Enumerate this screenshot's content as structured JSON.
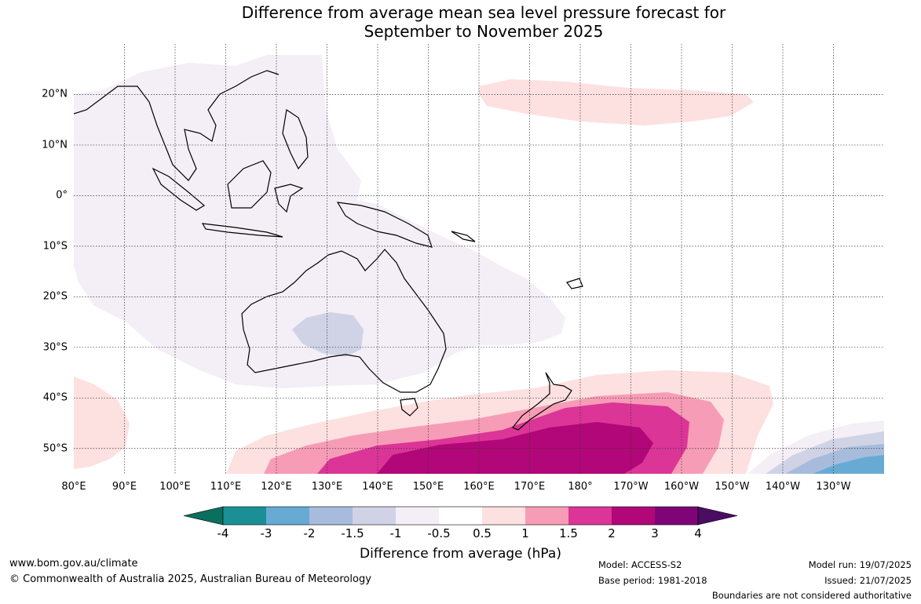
{
  "title": {
    "line1": "Difference from average mean sea level pressure forecast for",
    "line2": "September to November 2025"
  },
  "map": {
    "lon_labels": [
      "80°E",
      "90°E",
      "100°E",
      "110°E",
      "120°E",
      "130°E",
      "140°E",
      "150°E",
      "160°E",
      "170°E",
      "180°",
      "170°W",
      "160°W",
      "150°W",
      "140°W",
      "130°W"
    ],
    "lat_labels": [
      "20°N",
      "10°N",
      "0°",
      "10°S",
      "20°S",
      "30°S",
      "40°S",
      "50°S"
    ],
    "lon_range": [
      80,
      240
    ],
    "lat_range": [
      -55,
      30
    ],
    "gridlines": true
  },
  "colorbar": {
    "title": "Difference from average (hPa)",
    "labels": [
      "-4",
      "-3",
      "-2",
      "-1.5",
      "-1",
      "-0.5",
      "0.5",
      "1",
      "1.5",
      "2",
      "3",
      "4"
    ],
    "colors": [
      "#0b6f5e",
      "#1a9096",
      "#67abd4",
      "#a7bcdd",
      "#d0d2e6",
      "#f4eef7",
      "#ffffff",
      "#fde0e0",
      "#f79cb6",
      "#db3597",
      "#b20778",
      "#7e0478",
      "#4a0d63"
    ]
  },
  "footer": {
    "website": "www.bom.gov.au/climate",
    "copyright": "© Commonwealth of Australia 2025, Australian Bureau of Meteorology",
    "model": "Model: ACCESS-S2",
    "base_period": "Base period: 1981-2018",
    "model_run": "Model run: 19/07/2025",
    "issued": "Issued: 21/07/2025",
    "disclaimer": "Boundaries are not considered authoritative"
  }
}
